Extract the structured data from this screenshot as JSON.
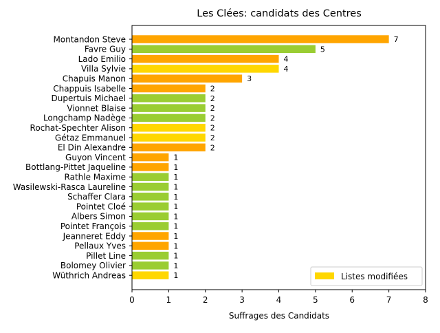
{
  "chart_data": {
    "type": "bar",
    "orientation": "horizontal",
    "title": "Les Clées: candidats des Centres",
    "xlabel": "Suffrages des Candidats",
    "ylabel": "",
    "xlim": [
      0,
      8
    ],
    "x_ticks": [
      0,
      1,
      2,
      3,
      4,
      5,
      6,
      7,
      8
    ],
    "grid": false,
    "legend_placement": "bottom-right",
    "legend": [
      {
        "label": "Listes modifiées",
        "color": "#ffd700"
      }
    ],
    "colors": {
      "orange": "#ffa500",
      "green": "#9acd32",
      "gold": "#ffd700"
    },
    "bars": [
      {
        "name": "Montandon Steve",
        "value": 7,
        "color": "#ffa500"
      },
      {
        "name": "Favre Guy",
        "value": 5,
        "color": "#9acd32"
      },
      {
        "name": "Lado Emilio",
        "value": 4,
        "color": "#ffa500"
      },
      {
        "name": "Villa Sylvie",
        "value": 4,
        "color": "#ffd700"
      },
      {
        "name": "Chapuis Manon",
        "value": 3,
        "color": "#ffa500"
      },
      {
        "name": "Chappuis Isabelle",
        "value": 2,
        "color": "#ffa500"
      },
      {
        "name": "Dupertuis Michael",
        "value": 2,
        "color": "#9acd32"
      },
      {
        "name": "Vionnet Blaise",
        "value": 2,
        "color": "#9acd32"
      },
      {
        "name": "Longchamp Nadège",
        "value": 2,
        "color": "#9acd32"
      },
      {
        "name": "Rochat-Spechter Alison",
        "value": 2,
        "color": "#ffd700"
      },
      {
        "name": "Gétaz Emmanuel",
        "value": 2,
        "color": "#ffd700"
      },
      {
        "name": "El Din Alexandre",
        "value": 2,
        "color": "#ffa500"
      },
      {
        "name": "Guyon Vincent",
        "value": 1,
        "color": "#ffa500"
      },
      {
        "name": "Bottlang-Pittet Jaqueline",
        "value": 1,
        "color": "#ffa500"
      },
      {
        "name": "Rathle Maxime",
        "value": 1,
        "color": "#9acd32"
      },
      {
        "name": "Wasilewski-Rasca Laureline",
        "value": 1,
        "color": "#9acd32"
      },
      {
        "name": "Schaffer Clara",
        "value": 1,
        "color": "#9acd32"
      },
      {
        "name": "Pointet Cloé",
        "value": 1,
        "color": "#9acd32"
      },
      {
        "name": "Albers Simon",
        "value": 1,
        "color": "#9acd32"
      },
      {
        "name": "Pointet François",
        "value": 1,
        "color": "#9acd32"
      },
      {
        "name": "Jeanneret Eddy",
        "value": 1,
        "color": "#ffa500"
      },
      {
        "name": "Pellaux Yves",
        "value": 1,
        "color": "#ffa500"
      },
      {
        "name": "Pillet Line",
        "value": 1,
        "color": "#9acd32"
      },
      {
        "name": "Bolomey Olivier",
        "value": 1,
        "color": "#9acd32"
      },
      {
        "name": "Wüthrich Andreas",
        "value": 1,
        "color": "#ffd700"
      }
    ]
  }
}
